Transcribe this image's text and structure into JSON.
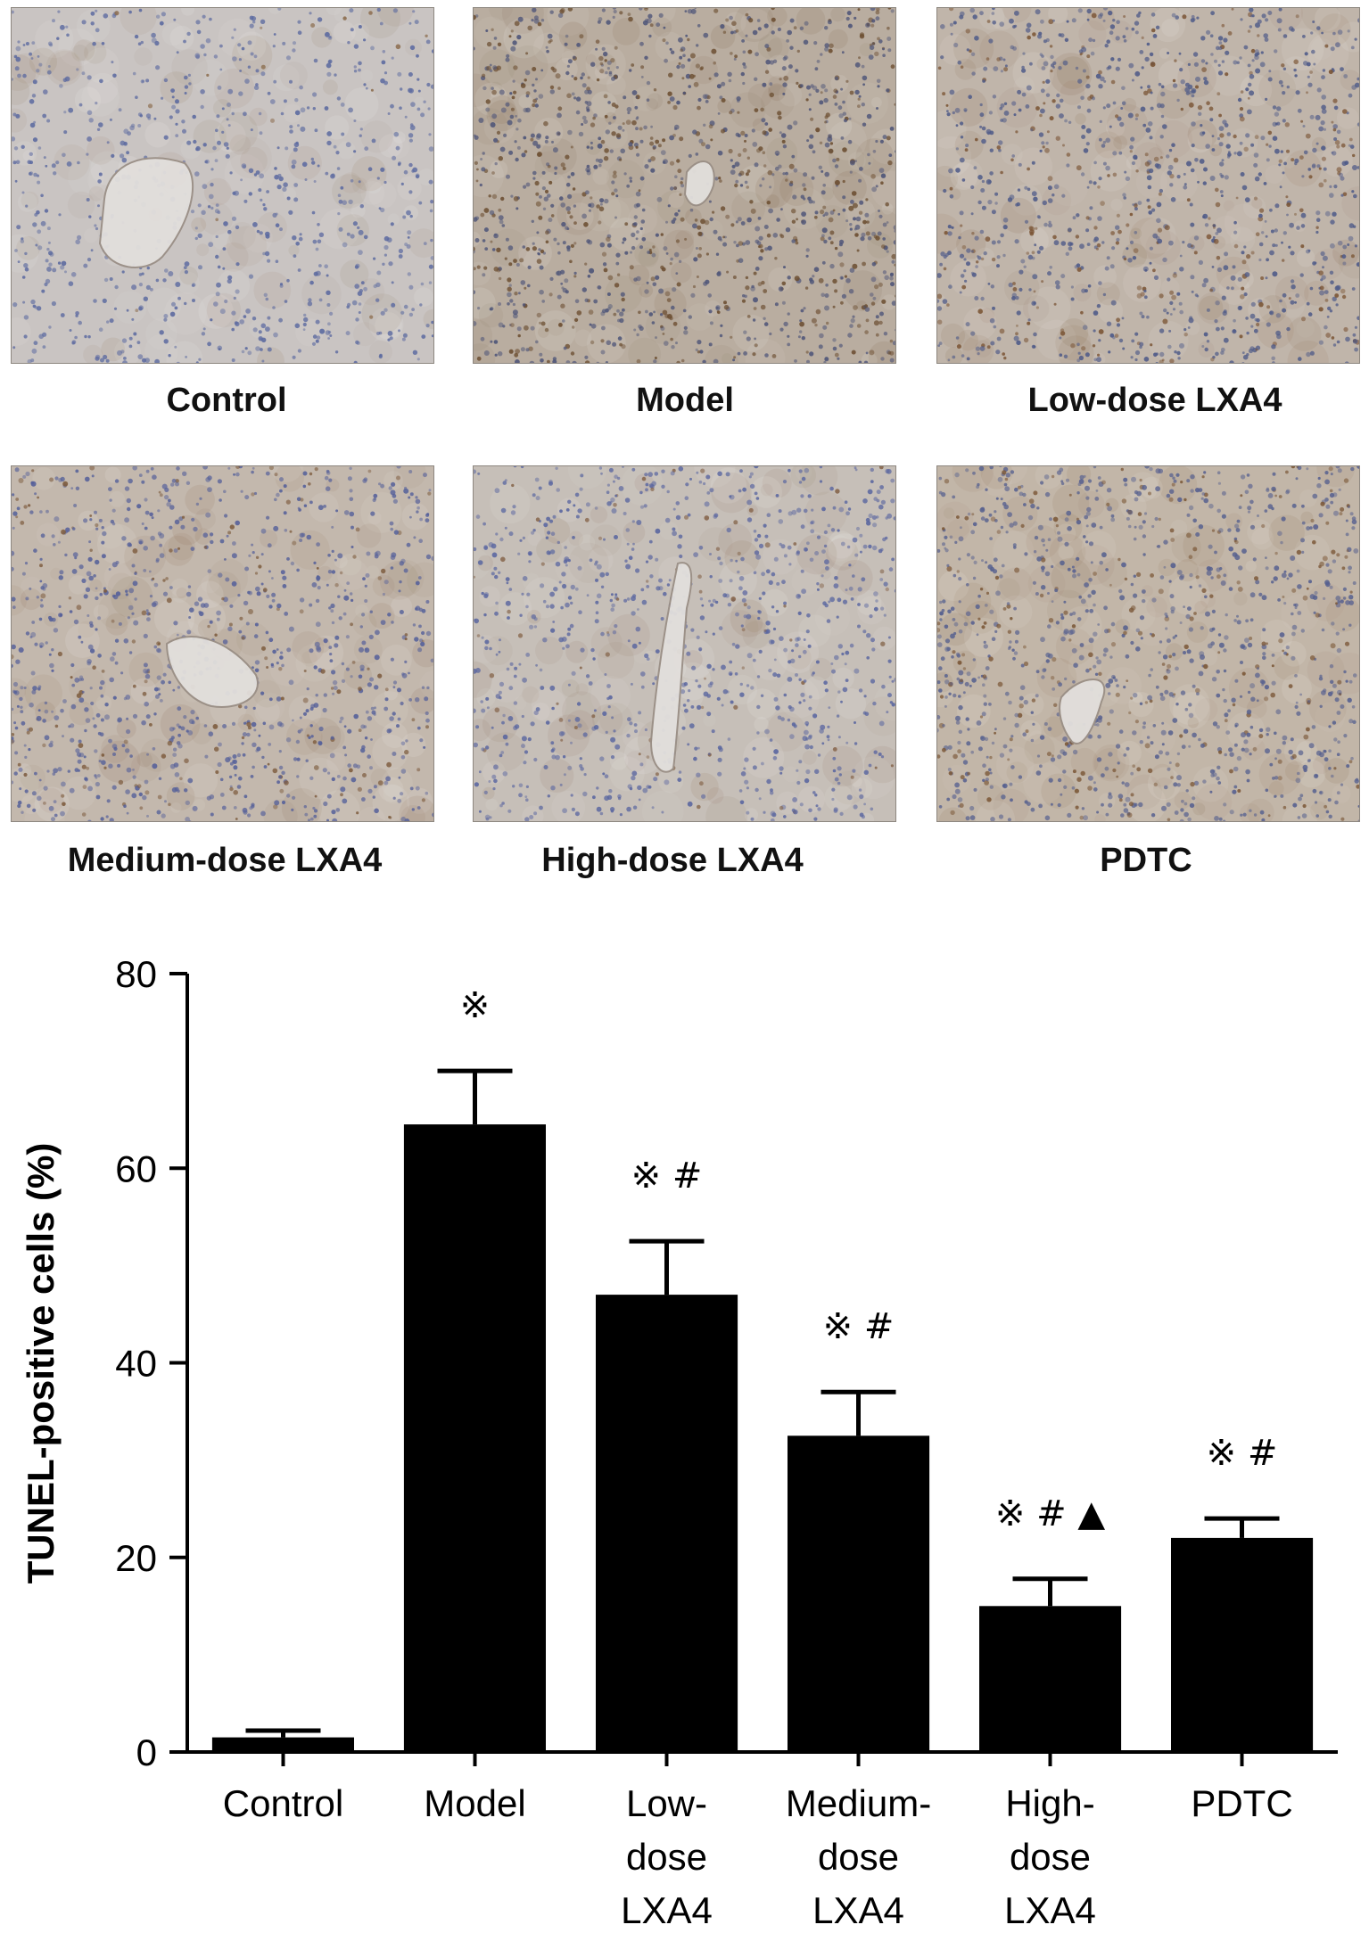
{
  "panels": [
    {
      "label": "Control",
      "bg": "#c9c4c2",
      "cell_tint": "#5c6aa0",
      "brown": "#8a6a4a",
      "brown_density": 0.02,
      "cell_density": 0.55,
      "vessel": true
    },
    {
      "label": "Model",
      "bg": "#b9ada0",
      "cell_tint": "#4d5478",
      "brown": "#6b4d30",
      "brown_density": 0.35,
      "cell_density": 0.9,
      "vessel": true
    },
    {
      "label": "Low-dose LXA4",
      "bg": "#c0b5aa",
      "cell_tint": "#4e5a88",
      "brown": "#7a5434",
      "brown_density": 0.22,
      "cell_density": 0.8,
      "vessel": false
    },
    {
      "label": "Medium-dose LXA4",
      "bg": "#c3b8ad",
      "cell_tint": "#55609a",
      "brown": "#7c5a3c",
      "brown_density": 0.15,
      "cell_density": 0.75,
      "vessel": true
    },
    {
      "label": "High-dose LXA4",
      "bg": "#c6bfb8",
      "cell_tint": "#5a66a0",
      "brown": "#85644a",
      "brown_density": 0.08,
      "cell_density": 0.65,
      "vessel": true
    },
    {
      "label": "PDTC",
      "bg": "#c2b6a8",
      "cell_tint": "#56608f",
      "brown": "#7a5636",
      "brown_density": 0.2,
      "cell_density": 0.8,
      "vessel": true
    }
  ],
  "chart_data": {
    "type": "bar",
    "categories": [
      "Control",
      "Model",
      "Low-dose LXA4",
      "Medium-dose LXA4",
      "High-dose LXA4",
      "PDTC"
    ],
    "category_lines": [
      [
        "Control"
      ],
      [
        "Model"
      ],
      [
        "Low-",
        "dose",
        "LXA4"
      ],
      [
        "Medium-",
        "dose",
        "LXA4"
      ],
      [
        "High-",
        "dose",
        "LXA4"
      ],
      [
        "PDTC"
      ]
    ],
    "values": [
      1.5,
      64.5,
      47,
      32.5,
      15,
      22
    ],
    "error_upper": [
      2.2,
      70,
      52.5,
      37,
      17.8,
      24
    ],
    "annotations": [
      "",
      "※",
      "※ #",
      "※ #",
      "※ # ▲",
      "※ #"
    ],
    "ylabel": "TUNEL-positive cells (%)",
    "xlabel": "",
    "ylim": [
      0,
      80
    ],
    "yticks": [
      0,
      20,
      40,
      60,
      80
    ],
    "bar_color": "#000000",
    "grid": false
  }
}
